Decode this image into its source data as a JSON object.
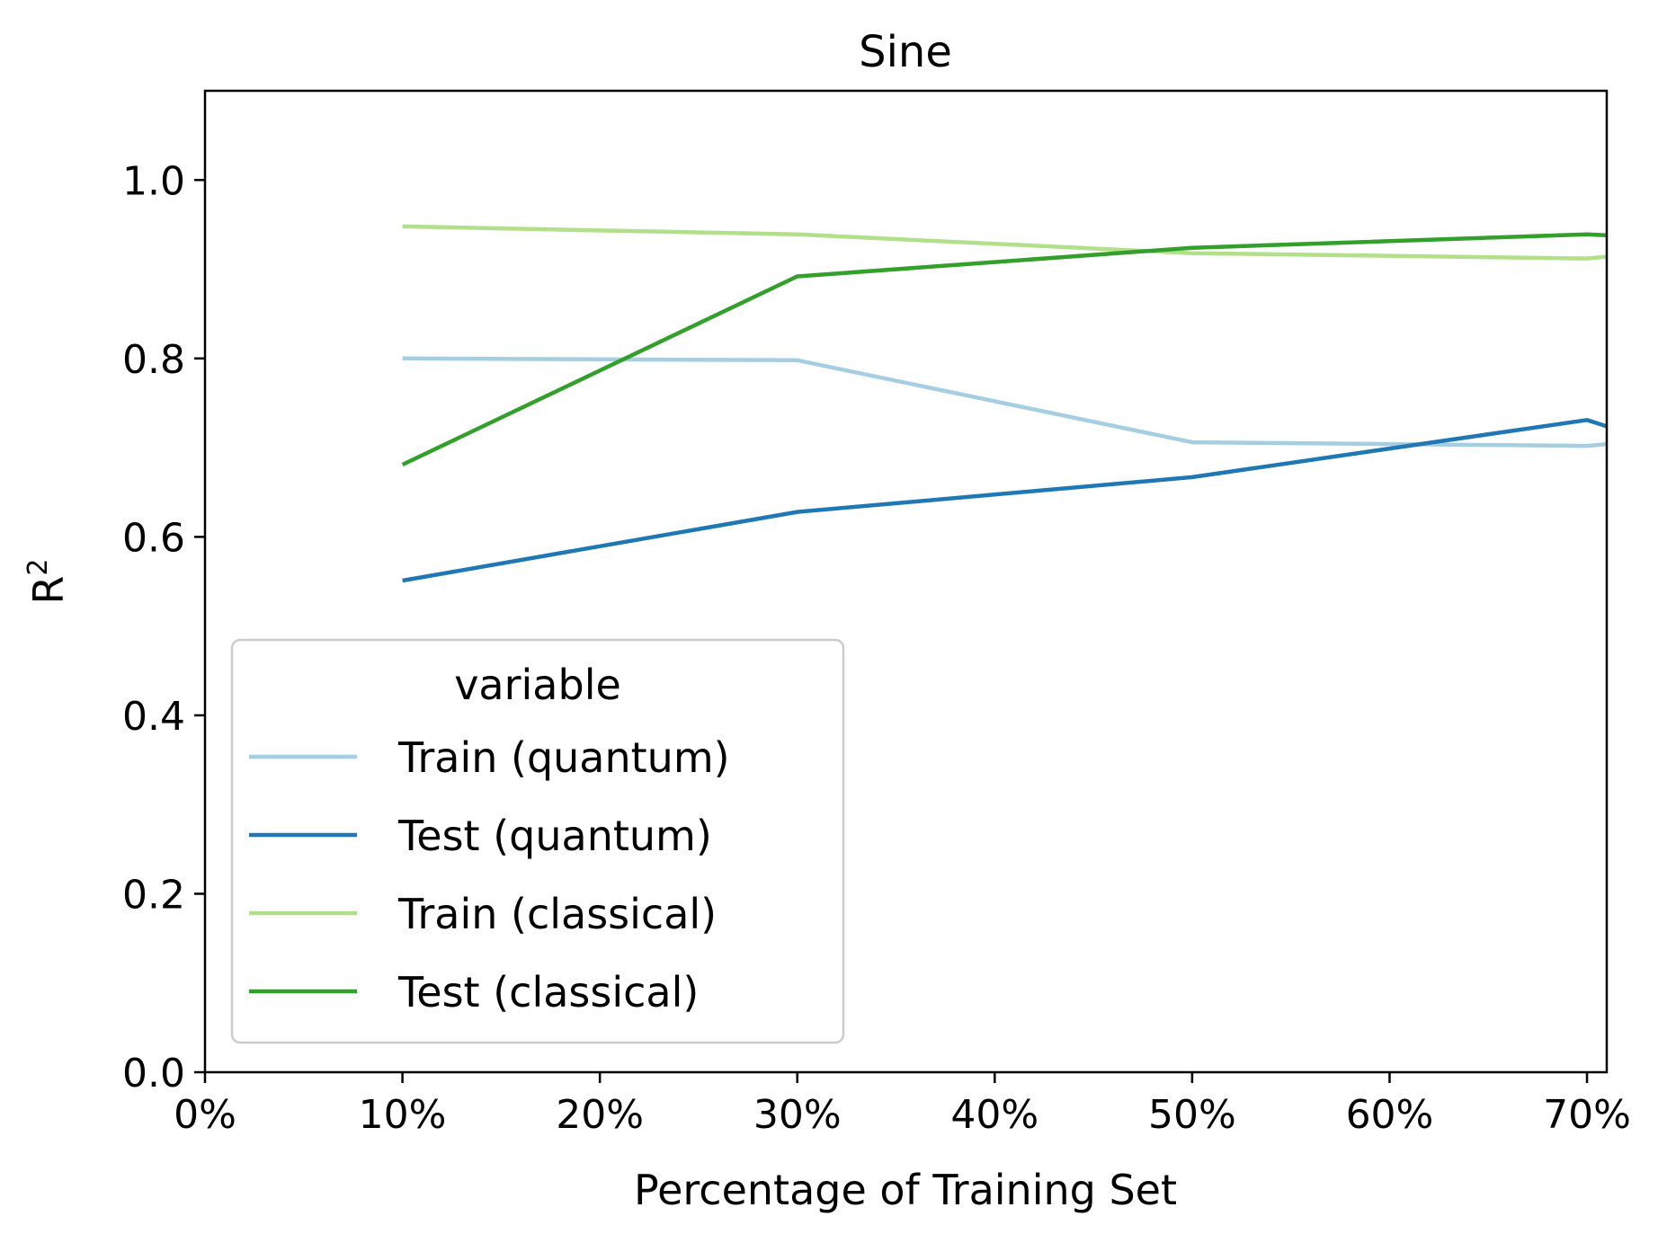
{
  "chart_data": {
    "type": "line",
    "title": "Sine",
    "xlabel": "Percentage of Training Set",
    "ylabel_base": "R",
    "ylabel_sup": "2",
    "xlim": [
      0,
      71
    ],
    "ylim": [
      0,
      1.1
    ],
    "x_ticks": [
      0,
      10,
      20,
      30,
      40,
      50,
      60,
      70
    ],
    "x_tick_labels": [
      "0%",
      "10%",
      "20%",
      "30%",
      "40%",
      "50%",
      "60%",
      "70%"
    ],
    "y_ticks": [
      0,
      0.2,
      0.4,
      0.6,
      0.8,
      1.0
    ],
    "y_tick_labels": [
      "0.0",
      "0.2",
      "0.4",
      "0.6",
      "0.8",
      "1.0"
    ],
    "grid": false,
    "legend": {
      "title": "variable",
      "placement": "lower-left"
    },
    "series": [
      {
        "name": "Train (quantum)",
        "color": "#a6cee3",
        "x": [
          10,
          30,
          50,
          70,
          71
        ],
        "y": [
          0.8,
          0.798,
          0.706,
          0.702,
          0.704
        ]
      },
      {
        "name": "Test (quantum)",
        "color": "#1f78b4",
        "x": [
          10,
          30,
          50,
          70,
          71
        ],
        "y": [
          0.551,
          0.628,
          0.667,
          0.731,
          0.724
        ]
      },
      {
        "name": "Train (classical)",
        "color": "#b2df8a",
        "x": [
          10,
          30,
          50,
          70,
          71
        ],
        "y": [
          0.948,
          0.939,
          0.918,
          0.912,
          0.914
        ]
      },
      {
        "name": "Test (classical)",
        "color": "#33a02c",
        "x": [
          10,
          30,
          50,
          70,
          71
        ],
        "y": [
          0.681,
          0.892,
          0.924,
          0.939,
          0.938
        ]
      }
    ]
  }
}
